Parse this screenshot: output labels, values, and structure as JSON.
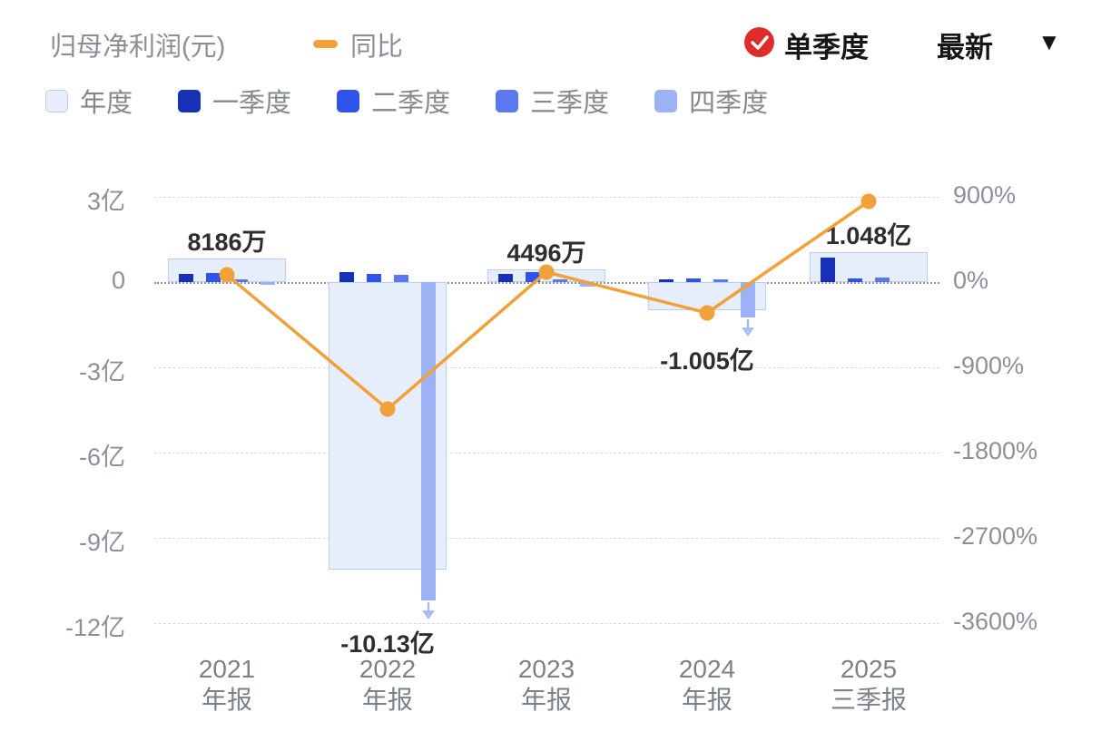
{
  "header": {
    "title": "归母净利润(元)",
    "line_legend": "同比",
    "toggle_label": "单季度",
    "latest_label": "最新"
  },
  "legend": [
    {
      "label": "年度",
      "color": "#e7eefb",
      "border": "#bccdf2"
    },
    {
      "label": "一季度",
      "color": "#1730b8"
    },
    {
      "label": "二季度",
      "color": "#2f54eb"
    },
    {
      "label": "三季度",
      "color": "#5b78ee"
    },
    {
      "label": "四季度",
      "color": "#9db2f4"
    }
  ],
  "colors": {
    "line": "#f0a13a",
    "check_badge": "#e02b2b",
    "annual_fill": "#e7eefb",
    "annual_border": "#bccdf2",
    "grid": "#d7dbe1",
    "zero_line": "#8e95a1",
    "axis_text": "#8b909b",
    "label_text": "#2e2e2e",
    "overflow_arrow": "#a9bcf5"
  },
  "chart_data": {
    "type": "bar+line",
    "title": "归母净利润(元) / 同比",
    "categories": [
      [
        "2021",
        "年报"
      ],
      [
        "2022",
        "年报"
      ],
      [
        "2023",
        "年报"
      ],
      [
        "2024",
        "年报"
      ],
      [
        "2025",
        "三季报"
      ]
    ],
    "annual": {
      "name": "年度",
      "values_yi": [
        0.8186,
        -10.13,
        0.4496,
        -1.005,
        1.048
      ],
      "labels": [
        "8186万",
        "-10.13亿",
        "4496万",
        "-1.005亿",
        "1.048亿"
      ]
    },
    "quarters": [
      {
        "name": "一季度",
        "values_yi": [
          0.28,
          0.35,
          0.3,
          0.1,
          0.85
        ]
      },
      {
        "name": "二季度",
        "values_yi": [
          0.33,
          0.3,
          0.36,
          0.12,
          0.12
        ]
      },
      {
        "name": "三季度",
        "values_yi": [
          0.1,
          0.25,
          0.1,
          0.1,
          0.15
        ]
      },
      {
        "name": "四季度",
        "values_yi": [
          -0.1,
          -11.2,
          -0.15,
          -1.25,
          null
        ]
      }
    ],
    "overflow_arrow_groups": [
      1,
      3
    ],
    "yoy": {
      "name": "同比",
      "values_pct": [
        77,
        -1340,
        105,
        -325,
        852
      ]
    },
    "left_axis": {
      "ticks_yi": [
        3,
        0,
        -3,
        -6,
        -9,
        -12
      ],
      "labels": [
        "3亿",
        "0",
        "-3亿",
        "-6亿",
        "-9亿",
        "-12亿"
      ]
    },
    "right_axis": {
      "labels": [
        "900%",
        "0%",
        "-900%",
        "-1800%",
        "-2700%",
        "-3600%"
      ]
    },
    "grid": "dashed horizontal",
    "legend_position": "top-left"
  }
}
